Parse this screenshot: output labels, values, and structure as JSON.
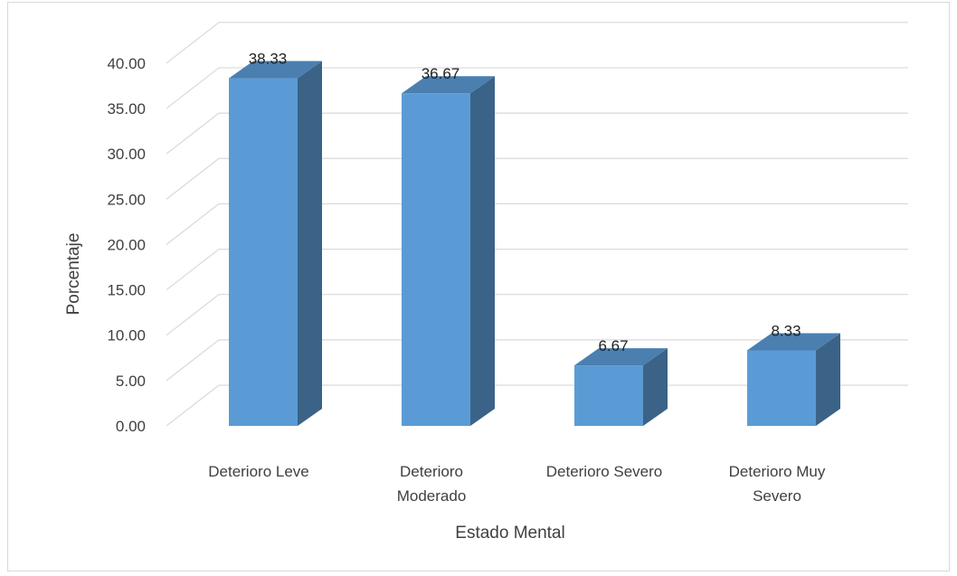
{
  "chart_data": {
    "type": "bar",
    "style": "3d-column",
    "title": "",
    "xlabel": "Estado Mental",
    "ylabel": "Porcentaje",
    "ylim": [
      0,
      40
    ],
    "y_ticks": [
      "0.00",
      "5.00",
      "10.00",
      "15.00",
      "20.00",
      "25.00",
      "30.00",
      "35.00",
      "40.00"
    ],
    "categories": [
      [
        "Deterioro Leve"
      ],
      [
        "Deterioro",
        "Moderado"
      ],
      [
        "Deterioro Severo"
      ],
      [
        "Deterioro Muy",
        "Severo"
      ]
    ],
    "values": [
      38.33,
      36.67,
      6.67,
      8.33
    ],
    "data_labels": [
      "38.33",
      "36.67",
      "6.67",
      "8.33"
    ],
    "grid": true,
    "legend": "none",
    "colors": {
      "bar_front": "#5b9bd5",
      "bar_side": "#3b6387",
      "bar_top": "#4a7fb0",
      "grid": "#d9d9d9"
    }
  }
}
